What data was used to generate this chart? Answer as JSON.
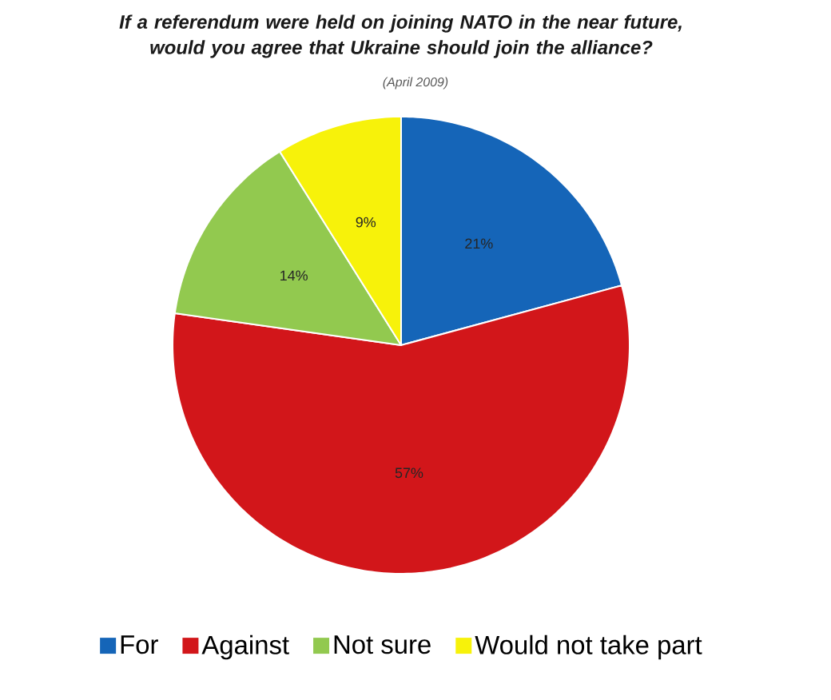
{
  "chart_data": {
    "type": "pie",
    "title": "If a referendum were held on joining NATO in the near future, would you agree that Ukraine should join the alliance?",
    "annotations": [
      "(April 2009)"
    ],
    "categories": [
      "For",
      "Against",
      "Not sure",
      "Would not take part"
    ],
    "values": [
      21,
      57,
      14,
      9
    ],
    "colors": [
      "#1565b8",
      "#d2161a",
      "#92c94f",
      "#f7f20a"
    ],
    "value_labels": [
      "21%",
      "57%",
      "14%",
      "9%"
    ],
    "legend": "bottom"
  }
}
